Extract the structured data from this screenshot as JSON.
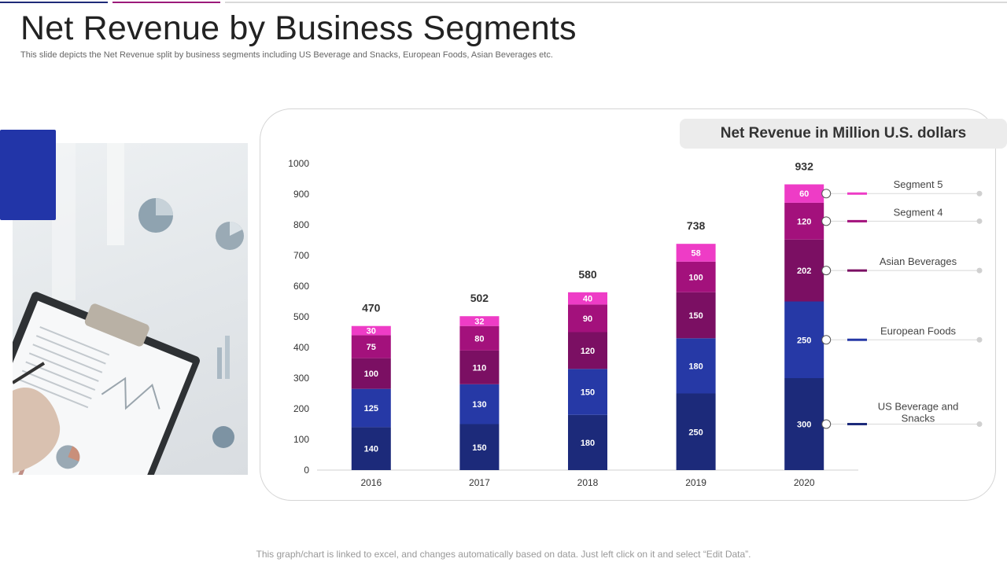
{
  "title": "Net Revenue by Business Segments",
  "subtitle": "This slide depicts the Net Revenue split by business segments including US Beverage and Snacks, European Foods, Asian Beverages etc.",
  "footer": "This graph/chart is linked to excel, and changes automatically based on data. Just left click on it and select “Edit Data”.",
  "chart_header": "Net Revenue in Million U.S. dollars",
  "chart_data": {
    "type": "bar",
    "stacked": true,
    "title": "Net Revenue in Million U.S. dollars",
    "xlabel": "",
    "ylabel": "",
    "ylim": [
      0,
      1000
    ],
    "yticks": [
      0,
      100,
      200,
      300,
      400,
      500,
      600,
      700,
      800,
      900,
      1000
    ],
    "categories": [
      "2016",
      "2017",
      "2018",
      "2019",
      "2020"
    ],
    "totals": [
      470,
      502,
      580,
      738,
      932
    ],
    "series": [
      {
        "name": "US Beverage  and Snacks",
        "color": "#1c2a7a",
        "values": [
          140,
          150,
          180,
          250,
          300
        ]
      },
      {
        "name": "European Foods",
        "color": "#2639a6",
        "values": [
          125,
          130,
          150,
          180,
          250
        ]
      },
      {
        "name": "Asian Beverages",
        "color": "#7b0f63",
        "values": [
          100,
          110,
          120,
          150,
          202
        ]
      },
      {
        "name": "Segment 4",
        "color": "#a3117c",
        "values": [
          75,
          80,
          90,
          100,
          120
        ]
      },
      {
        "name": "Segment 5",
        "color": "#ee3cc6",
        "values": [
          30,
          32,
          40,
          58,
          60
        ]
      }
    ]
  }
}
